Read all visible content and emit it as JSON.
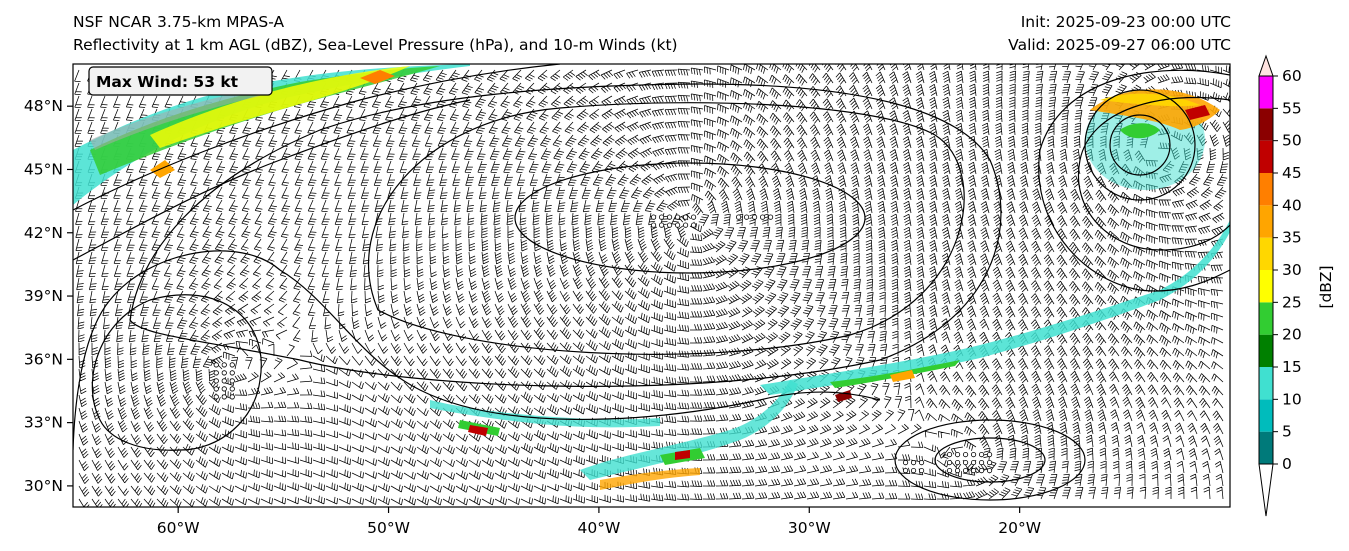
{
  "header": {
    "model": "NSF NCAR 3.75-km MPAS-A",
    "fields": "Reflectivity at 1 km AGL (dBZ), Sea-Level Pressure (hPa), and 10-m Winds (kt)",
    "init": "Init: 2025-09-23 00:00 UTC",
    "valid": "Valid: 2025-09-27 06:00 UTC"
  },
  "badge": {
    "text": "Max Wind: 53 kt"
  },
  "map": {
    "lon_range": [
      -65,
      -10
    ],
    "lat_range": [
      29,
      50
    ],
    "lon_ticks": [
      {
        "value": -60,
        "label": "60°W"
      },
      {
        "value": -50,
        "label": "50°W"
      },
      {
        "value": -40,
        "label": "40°W"
      },
      {
        "value": -30,
        "label": "30°W"
      },
      {
        "value": -20,
        "label": "20°W"
      }
    ],
    "lat_ticks": [
      {
        "value": 30,
        "label": "30°N"
      },
      {
        "value": 33,
        "label": "33°N"
      },
      {
        "value": 36,
        "label": "36°N"
      },
      {
        "value": 39,
        "label": "39°N"
      },
      {
        "value": 42,
        "label": "42°N"
      },
      {
        "value": 45,
        "label": "45°N"
      },
      {
        "value": 48,
        "label": "48°N"
      }
    ],
    "features": {
      "high_center": {
        "lon": -35.5,
        "lat": 42.6
      },
      "low_center": {
        "lon": -13.5,
        "lat": 45.8
      },
      "secondary_high": {
        "lon": -22,
        "lat": 31.2
      },
      "southwest_high": {
        "lon": -58,
        "lat": 35.5
      }
    }
  },
  "colorbar": {
    "label": "[dBZ]",
    "ticks": [
      "0",
      "5",
      "10",
      "15",
      "20",
      "25",
      "30",
      "35",
      "40",
      "45",
      "50",
      "55",
      "60"
    ],
    "colors": {
      "b0": "#007a7a",
      "b1": "#00bcbc",
      "b2": "#40e0d0",
      "b3": "#008000",
      "b4": "#32cd32",
      "b5": "#ffff00",
      "b6": "#ffd700",
      "b7": "#ffa500",
      "b8": "#ff7f00",
      "b9": "#c00000",
      "b10": "#8b0000",
      "b11": "#ff00ff",
      "b12": "#ffe4e1"
    }
  }
}
